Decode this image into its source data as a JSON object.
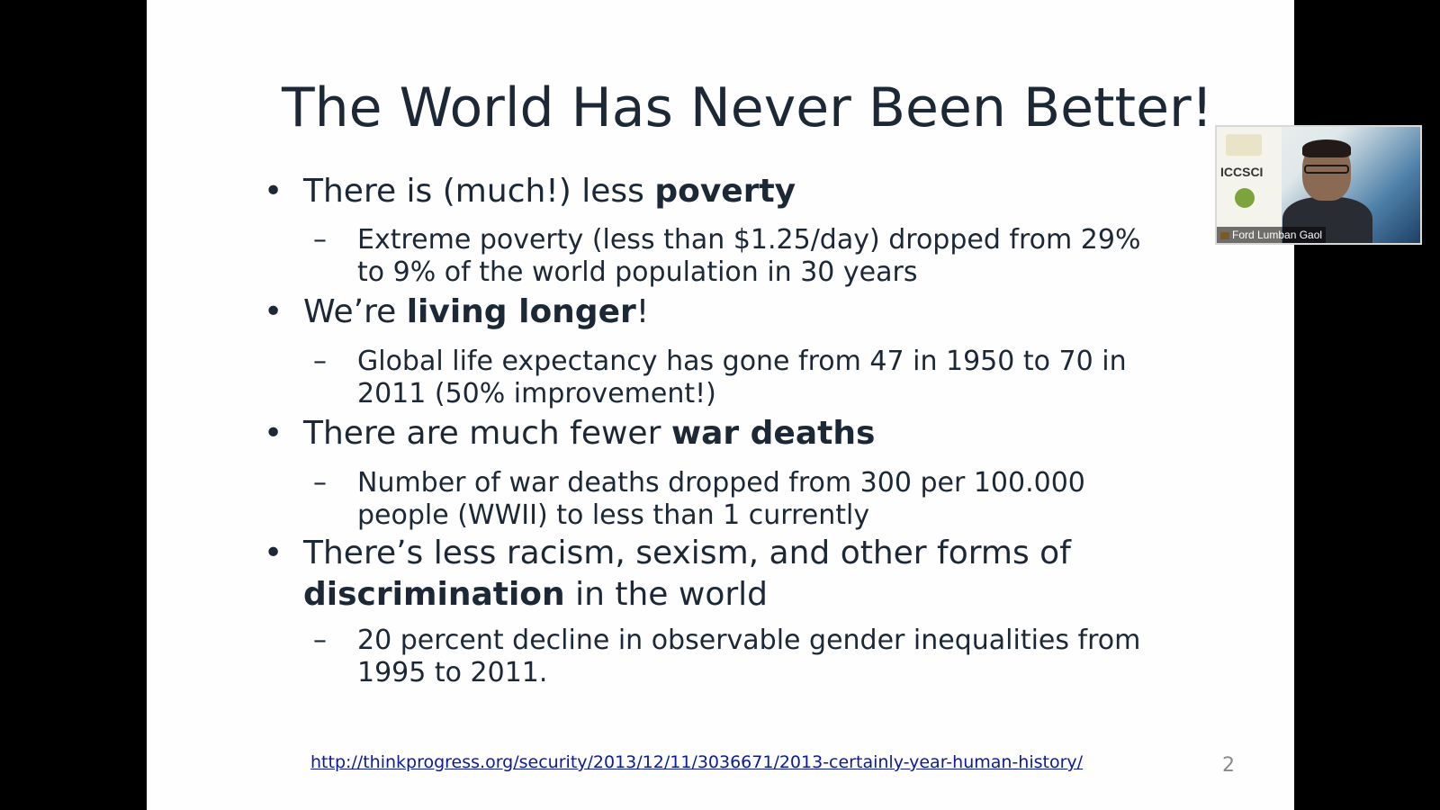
{
  "slide": {
    "title": "The World Has Never Been Better!",
    "bullet_char": "•",
    "dash_char": "–",
    "points": [
      {
        "pre": "There is (much!) less ",
        "bold": "poverty",
        "post": "",
        "sub": [
          "Extreme poverty (less than $1.25/day) dropped from 29%",
          "to 9% of the world population in 30 years"
        ]
      },
      {
        "pre": "We’re ",
        "bold": "living longer",
        "post": "!",
        "sub": [
          "Global life expectancy has gone from 47 in 1950 to 70 in",
          "2011 (50% improvement!)"
        ]
      },
      {
        "pre": "There are much fewer ",
        "bold": "war deaths",
        "post": "",
        "sub": [
          "Number of war deaths dropped from 300 per 100.000",
          "people (WWII) to less than 1 currently"
        ]
      },
      {
        "line1": "There’s less racism, sexism, and other forms of",
        "bold": "discrimination",
        "post": " in the world",
        "sub": [
          "20 percent decline in observable gender inequalities from",
          "1995 to 2011."
        ]
      }
    ],
    "source_link": "http://thinkprogress.org/security/2013/12/11/3036671/2013-certainly-year-human-history/",
    "page_number": "2"
  },
  "video_tile": {
    "participant_name": "Ford Lumban Gaol",
    "logo_text": "ICCSCI"
  }
}
